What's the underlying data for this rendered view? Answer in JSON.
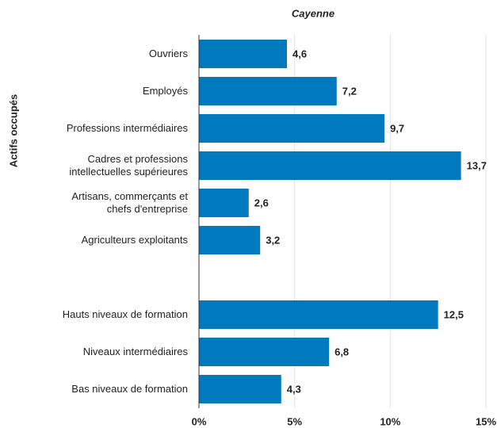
{
  "chart_data": {
    "type": "bar",
    "orientation": "horizontal",
    "title": "Cayenne",
    "ylabel": "Actifs occupés",
    "categories": [
      "Ouvriers",
      "Employés",
      "Professions intermédiaires",
      "Cadres et professions\nintellectuelles supérieures",
      "Artisans, commerçants et\nchefs d'entreprise",
      "Agriculteurs exploitants",
      null,
      "Hauts niveaux de formation",
      "Niveaux intermédiaires",
      "Bas niveaux de formation"
    ],
    "values": [
      4.6,
      7.2,
      9.7,
      13.7,
      2.6,
      3.2,
      null,
      12.5,
      6.8,
      4.3
    ],
    "value_labels": [
      "4,6",
      "7,2",
      "9,7",
      "13,7",
      "2,6",
      "3,2",
      null,
      "12,5",
      "6,8",
      "4,3"
    ],
    "color": "#0079be",
    "xlim": [
      0,
      15
    ],
    "xticks": [
      {
        "value": 0,
        "label": "0%"
      },
      {
        "value": 5,
        "label": "5%"
      },
      {
        "value": 10,
        "label": "10%"
      },
      {
        "value": 15,
        "label": "15%"
      }
    ],
    "grid": true
  }
}
